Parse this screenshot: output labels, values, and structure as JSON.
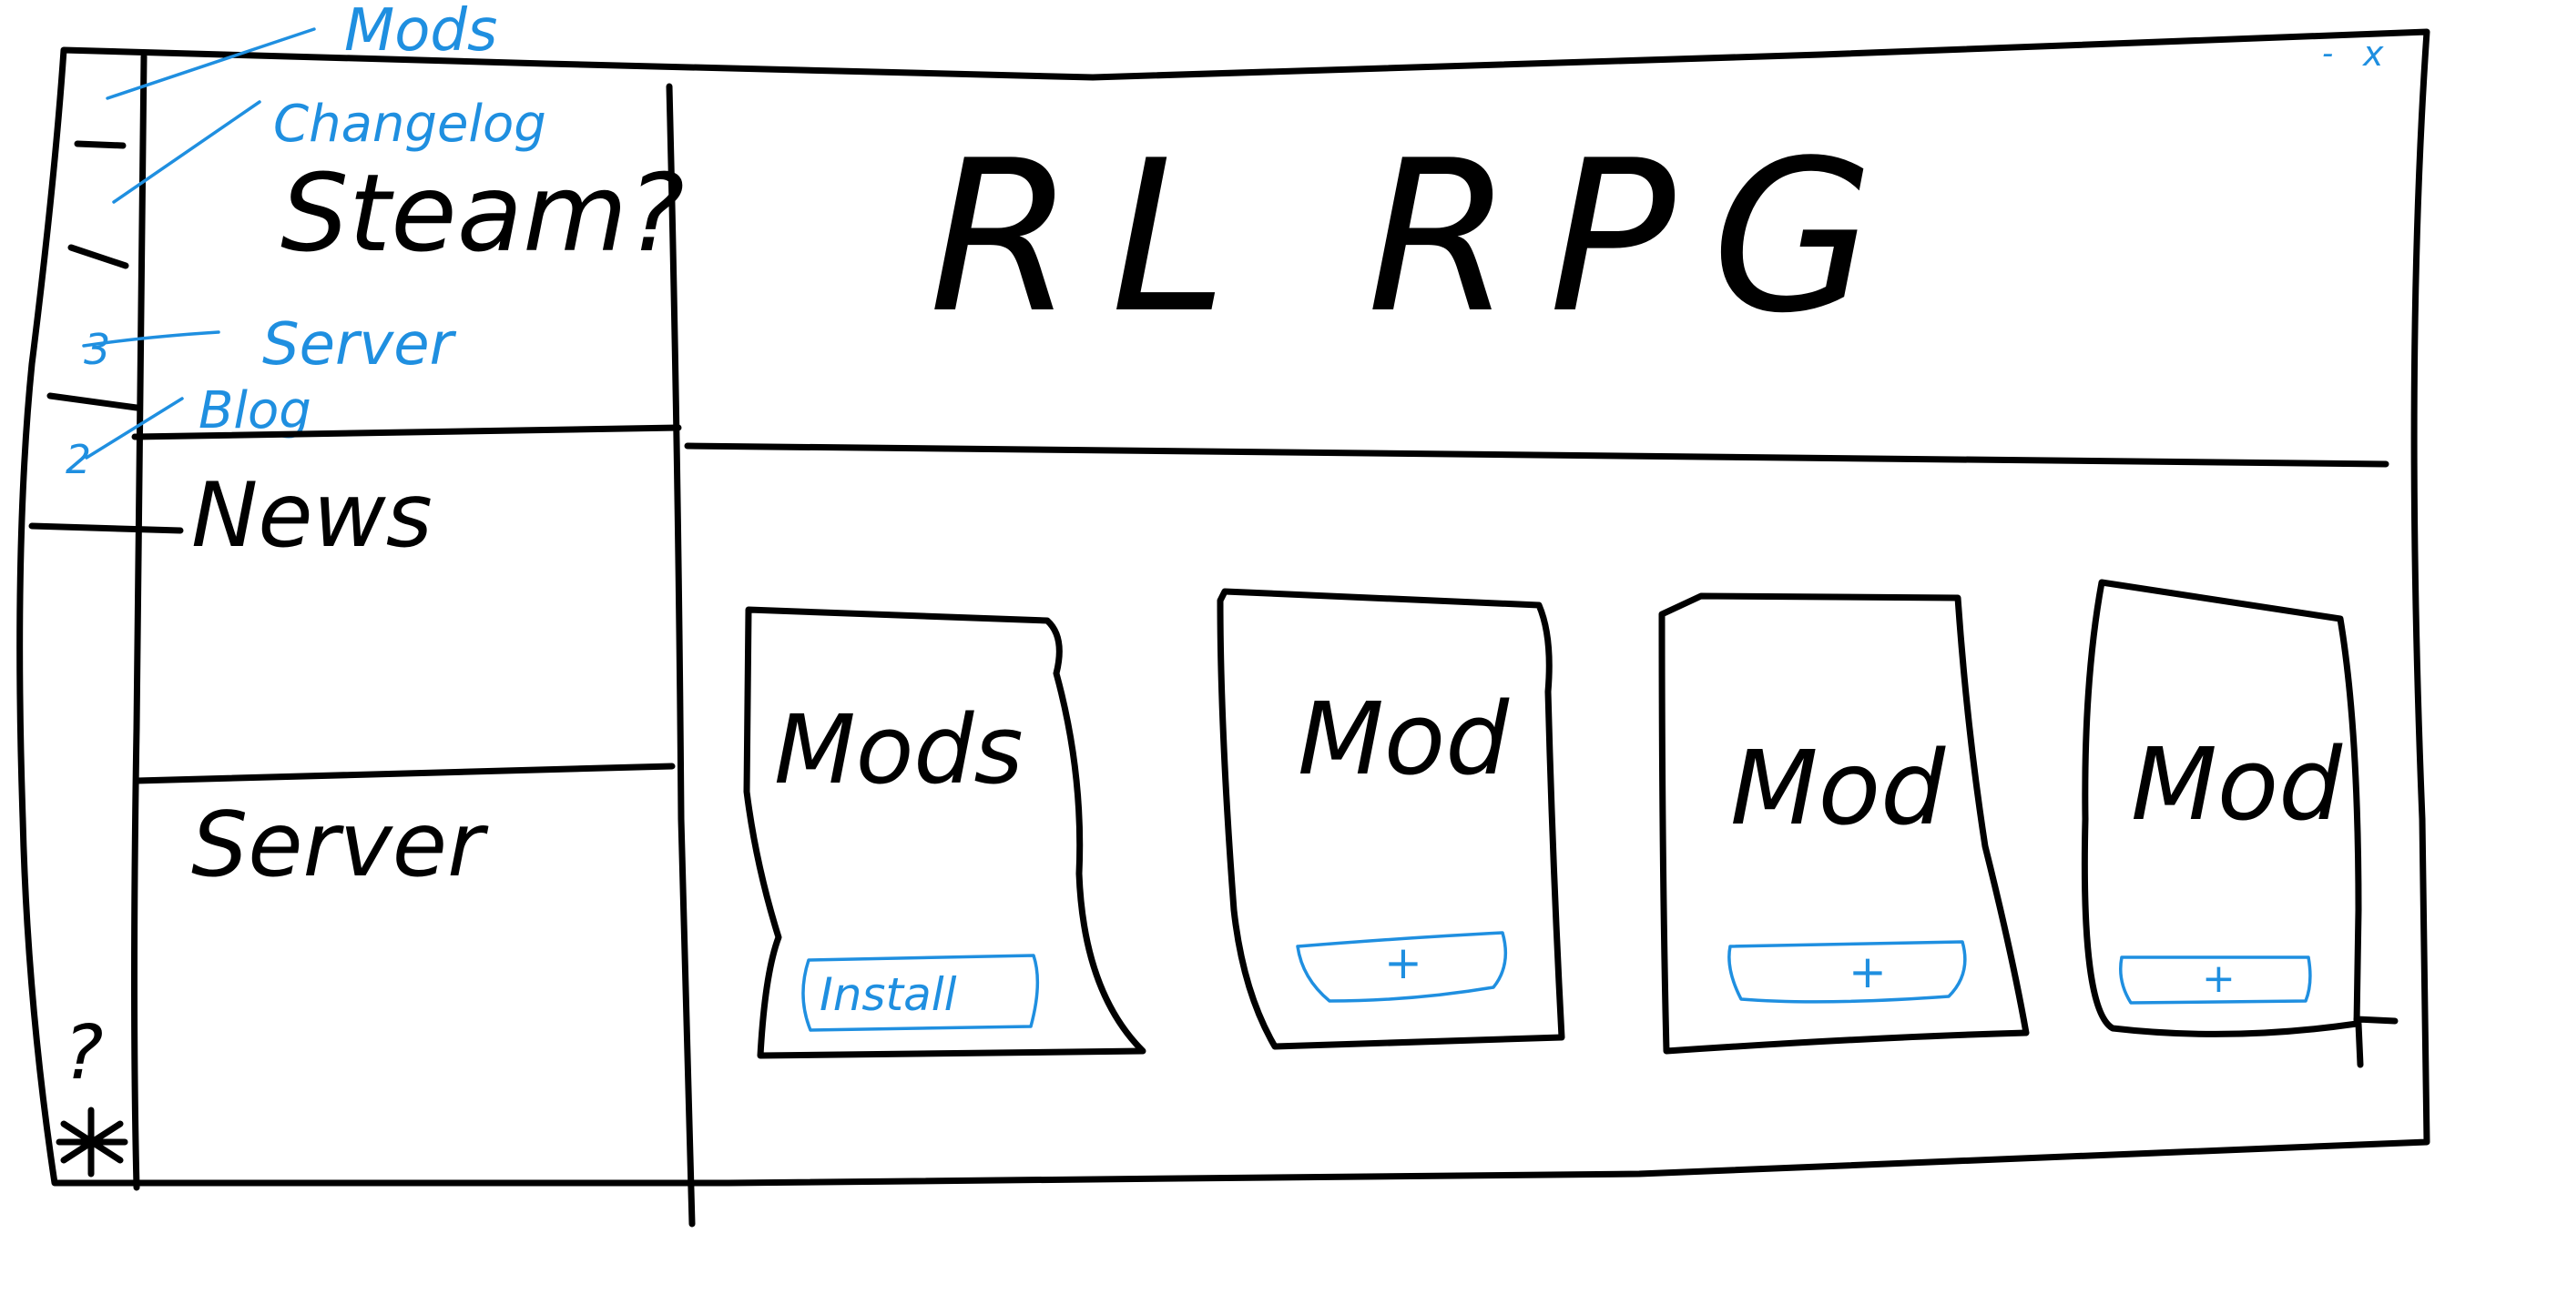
{
  "window_controls": {
    "minimize": "-",
    "close": "x"
  },
  "icon_rail": {
    "annotations": [
      "Mods",
      "Changelog",
      "Server",
      "Blog"
    ],
    "marker_server": "3",
    "marker_blog": "2",
    "help_icon": "?",
    "settings_icon": "star-gear-icon"
  },
  "sidebar": {
    "top_label": "Steam?",
    "news_label": "News",
    "server_label": "Server"
  },
  "header": {
    "title": "RL RPG"
  },
  "mods": [
    {
      "name": "Mods",
      "button_label": "Install"
    },
    {
      "name": "Mod",
      "button_label": "+"
    },
    {
      "name": "Mod",
      "button_label": "+"
    },
    {
      "name": "Mod",
      "button_label": "+"
    }
  ],
  "colors": {
    "ink": "#000000",
    "annotation": "#1f8fe0",
    "background": "#ffffff"
  }
}
